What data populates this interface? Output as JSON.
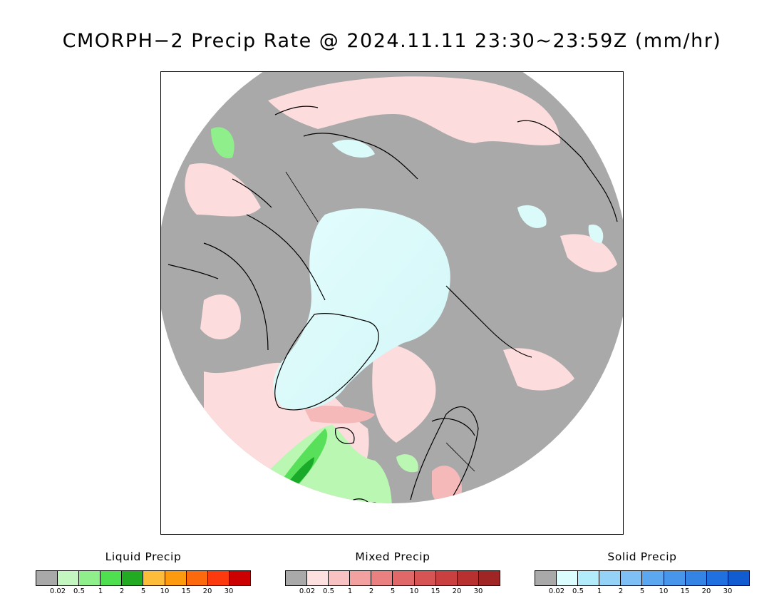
{
  "title": "CMORPH−2 Precip Rate @ 2024.11.11 23:30~23:59Z (mm/hr)",
  "map": {
    "projection": "north-polar-stereographic",
    "colors": {
      "background_gray": "#a9a9a9",
      "solid_light": "#dbfbfb",
      "mixed_light": "#fcdcdc",
      "mixed_medium": "#f6b9b9",
      "liquid_light": "#b9f7b2",
      "liquid_medium": "#58e05b",
      "liquid_dark": "#1aaa2a",
      "coast": "#000000"
    }
  },
  "legends": [
    {
      "id": "liquid",
      "title": "Liquid Precip",
      "colors": [
        "#a9a9a9",
        "#c4f7bf",
        "#8fef8a",
        "#4fe04f",
        "#22aa22",
        "#fdbd3a",
        "#fd9a0d",
        "#fd6a0d",
        "#fd3a0d",
        "#cc0000"
      ],
      "ticks": [
        "0.02",
        "0.5",
        "1",
        "2",
        "5",
        "10",
        "15",
        "20",
        "30"
      ]
    },
    {
      "id": "mixed",
      "title": "Mixed Precip",
      "colors": [
        "#a9a9a9",
        "#fde0e0",
        "#f9c2c2",
        "#f2a0a0",
        "#ea8080",
        "#e06868",
        "#d65454",
        "#ca4040",
        "#b83030",
        "#a02525"
      ],
      "ticks": [
        "0.02",
        "0.5",
        "1",
        "2",
        "5",
        "10",
        "15",
        "20",
        "30"
      ]
    },
    {
      "id": "solid",
      "title": "Solid Precip",
      "colors": [
        "#a9a9a9",
        "#dbfdfd",
        "#b2ecfa",
        "#94d2f7",
        "#7ec0f5",
        "#5ca8f0",
        "#4896ec",
        "#3484e6",
        "#2070e0",
        "#105cd0"
      ],
      "ticks": [
        "0.02",
        "0.5",
        "1",
        "2",
        "5",
        "10",
        "15",
        "20",
        "30"
      ]
    }
  ]
}
